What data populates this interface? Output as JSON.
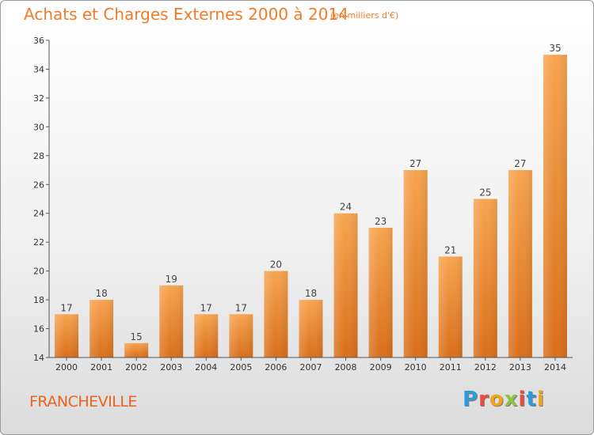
{
  "title": "Achats et Charges Externes 2000 à 2014",
  "subtitle": "(en milliers d'€)",
  "place": "FRANCHEVILLE",
  "brand": {
    "text": "Proxiti",
    "colors": [
      "#2f9bd6",
      "#e94e3d",
      "#f2a31a",
      "#8cc63f",
      "#e94e3d",
      "#2f9bd6",
      "#f2a31a"
    ]
  },
  "colors": {
    "bar_top": "#f7a44f",
    "bar_bottom": "#d96f1b",
    "title": "#f07c2a"
  },
  "chart_data": {
    "type": "bar",
    "title": "Achats et Charges Externes 2000 à 2014",
    "subtitle": "(en milliers d'€)",
    "categories": [
      "2000",
      "2001",
      "2002",
      "2003",
      "2004",
      "2005",
      "2006",
      "2007",
      "2008",
      "2009",
      "2010",
      "2011",
      "2012",
      "2013",
      "2014"
    ],
    "values": [
      17,
      18,
      15,
      19,
      17,
      17,
      20,
      18,
      24,
      23,
      27,
      21,
      25,
      27,
      35
    ],
    "ylim": [
      14,
      36
    ],
    "yticks": [
      14,
      16,
      18,
      20,
      22,
      24,
      26,
      28,
      30,
      32,
      34,
      36
    ],
    "grid": false,
    "xlabel": "",
    "ylabel": ""
  }
}
